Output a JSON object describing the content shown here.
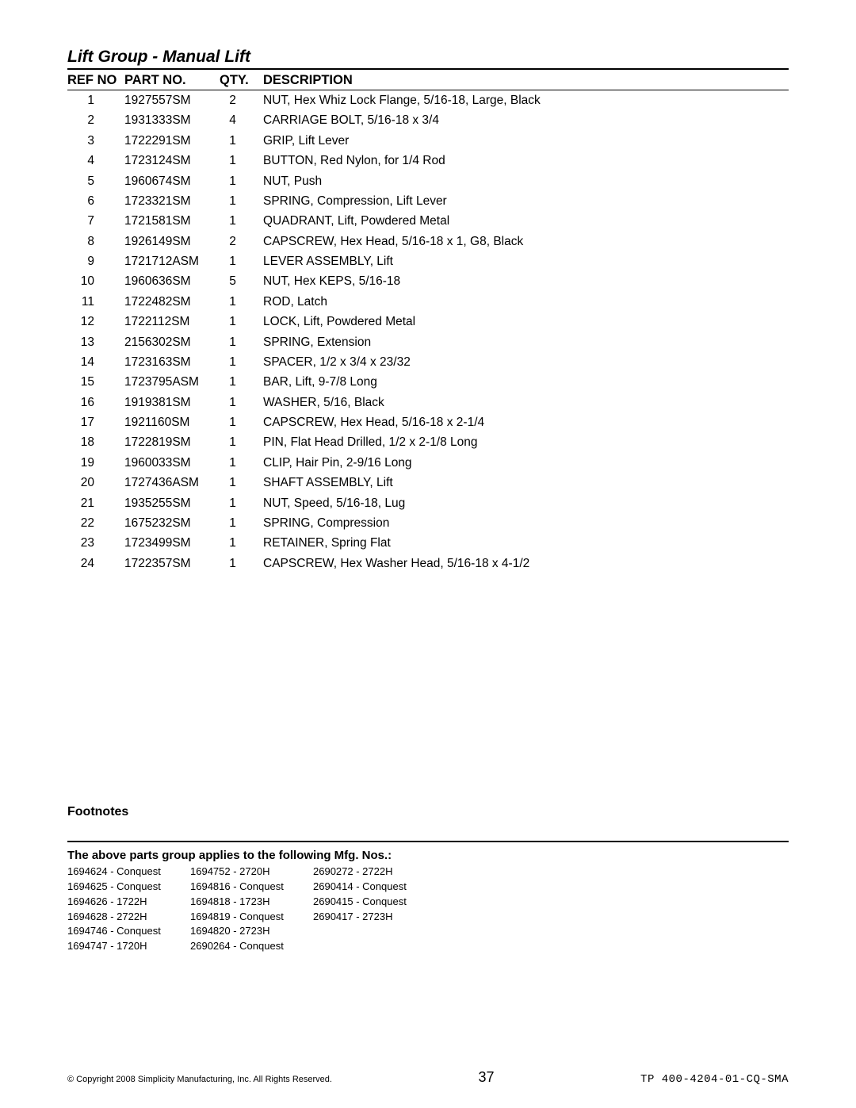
{
  "title": "Lift Group - Manual Lift",
  "columns": {
    "ref": "REF NO",
    "part": "PART NO.",
    "qty": "QTY.",
    "desc": "DESCRIPTION"
  },
  "rows": [
    {
      "ref": "1",
      "part": "1927557SM",
      "qty": "2",
      "desc": "NUT, Hex Whiz Lock Flange, 5/16-18, Large, Black"
    },
    {
      "ref": "2",
      "part": "1931333SM",
      "qty": "4",
      "desc": "CARRIAGE BOLT, 5/16-18 x 3/4"
    },
    {
      "ref": "3",
      "part": "1722291SM",
      "qty": "1",
      "desc": "GRIP, Lift Lever"
    },
    {
      "ref": "4",
      "part": "1723124SM",
      "qty": "1",
      "desc": "BUTTON, Red Nylon, for 1/4 Rod"
    },
    {
      "ref": "5",
      "part": "1960674SM",
      "qty": "1",
      "desc": "NUT, Push"
    },
    {
      "ref": "6",
      "part": "1723321SM",
      "qty": "1",
      "desc": "SPRING, Compression, Lift Lever"
    },
    {
      "ref": "7",
      "part": "1721581SM",
      "qty": "1",
      "desc": "QUADRANT, Lift, Powdered Metal"
    },
    {
      "ref": "8",
      "part": "1926149SM",
      "qty": "2",
      "desc": "CAPSCREW, Hex Head, 5/16-18 x 1, G8, Black"
    },
    {
      "ref": "9",
      "part": "1721712ASM",
      "qty": "1",
      "desc": "LEVER ASSEMBLY, Lift"
    },
    {
      "ref": "10",
      "part": "1960636SM",
      "qty": "5",
      "desc": "NUT, Hex KEPS, 5/16-18"
    },
    {
      "ref": "11",
      "part": "1722482SM",
      "qty": "1",
      "desc": "ROD, Latch"
    },
    {
      "ref": "12",
      "part": "1722112SM",
      "qty": "1",
      "desc": "LOCK, Lift, Powdered Metal"
    },
    {
      "ref": "13",
      "part": "2156302SM",
      "qty": "1",
      "desc": "SPRING, Extension"
    },
    {
      "ref": "14",
      "part": "1723163SM",
      "qty": "1",
      "desc": "SPACER, 1/2 x 3/4 x 23/32"
    },
    {
      "ref": "15",
      "part": "1723795ASM",
      "qty": "1",
      "desc": "BAR, Lift, 9-7/8 Long"
    },
    {
      "ref": "16",
      "part": "1919381SM",
      "qty": "1",
      "desc": "WASHER, 5/16, Black"
    },
    {
      "ref": "17",
      "part": "1921160SM",
      "qty": "1",
      "desc": "CAPSCREW, Hex Head, 5/16-18 x 2-1/4"
    },
    {
      "ref": "18",
      "part": "1722819SM",
      "qty": "1",
      "desc": "PIN, Flat Head Drilled, 1/2 x 2-1/8 Long"
    },
    {
      "ref": "19",
      "part": "1960033SM",
      "qty": "1",
      "desc": "CLIP, Hair Pin, 2-9/16 Long"
    },
    {
      "ref": "20",
      "part": "1727436ASM",
      "qty": "1",
      "desc": "SHAFT ASSEMBLY, Lift"
    },
    {
      "ref": "21",
      "part": "1935255SM",
      "qty": "1",
      "desc": "NUT, Speed, 5/16-18, Lug"
    },
    {
      "ref": "22",
      "part": "1675232SM",
      "qty": "1",
      "desc": "SPRING, Compression"
    },
    {
      "ref": "23",
      "part": "1723499SM",
      "qty": "1",
      "desc": "RETAINER, Spring Flat"
    },
    {
      "ref": "24",
      "part": "1722357SM",
      "qty": "1",
      "desc": "CAPSCREW, Hex Washer Head, 5/16-18 x 4-1/2"
    }
  ],
  "footnotes_label": "Footnotes",
  "mfg_heading": "The above parts group applies to the following Mfg. Nos.:",
  "mfg_cols": [
    [
      "1694624 - Conquest",
      "1694625 - Conquest",
      "1694626 - 1722H",
      "1694628 - 2722H",
      "1694746 - Conquest",
      "1694747 - 1720H"
    ],
    [
      "1694752 - 2720H",
      "1694816 - Conquest",
      "1694818 - 1723H",
      "1694819 - Conquest",
      "1694820 - 2723H",
      "2690264 - Conquest"
    ],
    [
      "2690272 - 2722H",
      "2690414 - Conquest",
      "2690415 - Conquest",
      "2690417 - 2723H"
    ]
  ],
  "footer": {
    "copyright": "© Copyright 2008 Simplicity Manufacturing, Inc. All Rights Reserved.",
    "page": "37",
    "docid": "TP 400-4204-01-CQ-SMA"
  }
}
